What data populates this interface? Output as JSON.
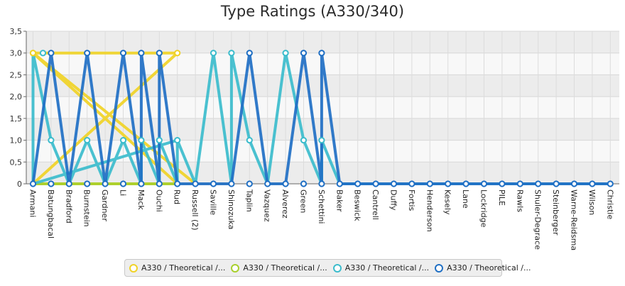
{
  "chart_data": {
    "type": "line",
    "title": "Type Ratings (A330/340)",
    "xlabel": "",
    "ylabel": "",
    "ylim": [
      0,
      3.5
    ],
    "yticks": [
      "0",
      "0,5",
      "1,0",
      "1,5",
      "2,0",
      "2,5",
      "3,0",
      "3,5"
    ],
    "grid": true,
    "legend_position": "bottom",
    "categories": [
      "Armani",
      "Batungbacal",
      "Bradford",
      "Burnstein",
      "Gardner",
      "Li",
      "Mack",
      "Ouchi",
      "Rud",
      "Russell (2)",
      "Saville",
      "Shinozuka",
      "Taplin",
      "Vazquez",
      "Alverez",
      "Green",
      "Schettini",
      "Baker",
      "Beswick",
      "Cantrell",
      "Duffy",
      "Fortis",
      "Henderson",
      "Kesely",
      "Lane",
      "Lockridge",
      "PILE",
      "Rawls",
      "Shuler-Degrace",
      "Steinberger",
      "Warne-Reidsma",
      "Wilson",
      "Christie"
    ],
    "series": [
      {
        "name": "A330 / Theoretical /...",
        "color": "#f0d226",
        "points": [
          [
            "Armani",
            3
          ],
          [
            "Rud",
            0
          ],
          [
            "Armani",
            0
          ],
          [
            "Rud",
            3
          ],
          [
            "Armani",
            3
          ],
          [
            "Russell (2)",
            0
          ]
        ]
      },
      {
        "name": "A330 / Theoretical /...",
        "color": "#a8d02c",
        "points": [
          [
            "Armani",
            0
          ],
          [
            "Rud",
            0
          ]
        ]
      },
      {
        "name": "A330 / Theoretical /...",
        "color": "#3bbccc",
        "points": [
          [
            "Armani",
            3
          ],
          [
            "Armani",
            0
          ],
          [
            "Rud",
            1
          ],
          [
            "Armani",
            0
          ],
          [
            "Armani",
            3
          ],
          [
            "Armani",
            3
          ],
          [
            "Batungbacal",
            1
          ],
          [
            "Bradford",
            0
          ],
          [
            "Burnstein",
            1
          ],
          [
            "Gardner",
            0
          ],
          [
            "Li",
            1
          ],
          [
            "Mack",
            0
          ],
          [
            "Mack",
            1
          ],
          [
            "Ouchi",
            0
          ],
          [
            "Ouchi",
            1
          ],
          [
            "Rud",
            0
          ],
          [
            "Rud",
            1
          ],
          [
            "Russell (2)",
            0
          ],
          [
            "Saville",
            3
          ],
          [
            "Shinozuka",
            0
          ],
          [
            "Shinozuka",
            3
          ],
          [
            "Taplin",
            1
          ],
          [
            "Vazquez",
            0
          ],
          [
            "Alverez",
            3
          ],
          [
            "Green",
            1
          ],
          [
            "Green",
            1
          ],
          [
            "Schettini",
            0
          ],
          [
            "Schettini",
            1
          ],
          [
            "Baker",
            0
          ],
          [
            "Christie",
            0
          ]
        ]
      },
      {
        "name": "A330 / Theoretical /...",
        "color": "#1f6fc4",
        "points": [
          [
            "Armani",
            0
          ],
          [
            "Batungbacal",
            3
          ],
          [
            "Bradford",
            0
          ],
          [
            "Burnstein",
            3
          ],
          [
            "Gardner",
            0
          ],
          [
            "Li",
            3
          ],
          [
            "Mack",
            0
          ],
          [
            "Mack",
            3
          ],
          [
            "Ouchi",
            0
          ],
          [
            "Ouchi",
            3
          ],
          [
            "Rud",
            0
          ],
          [
            "Russell (2)",
            0
          ],
          [
            "Saville",
            0
          ],
          [
            "Shinozuka",
            0
          ],
          [
            "Taplin",
            3
          ],
          [
            "Vazquez",
            0
          ],
          [
            "Alverez",
            0
          ],
          [
            "Green",
            3
          ],
          [
            "Green",
            3
          ],
          [
            "Schettini",
            0
          ],
          [
            "Schettini",
            3
          ],
          [
            "Baker",
            0
          ],
          [
            "Christie",
            0
          ]
        ]
      }
    ],
    "marker_values": {
      "Armani": [
        3,
        3,
        0
      ],
      "Batungbacal": [
        3,
        1,
        0
      ],
      "Bradford": [
        0
      ],
      "Burnstein": [
        3,
        1,
        0
      ],
      "Gardner": [
        0
      ],
      "Li": [
        3,
        1,
        0
      ],
      "Mack": [
        3,
        1,
        0
      ],
      "Ouchi": [
        3,
        1,
        0
      ],
      "Rud": [
        3,
        1,
        0
      ],
      "Russell (2)": [
        0
      ],
      "Saville": [
        3,
        0
      ],
      "Shinozuka": [
        3,
        0
      ],
      "Taplin": [
        3,
        1,
        0
      ],
      "Vazquez": [
        0
      ],
      "Alverez": [
        3,
        0
      ],
      "Green": [
        3,
        1,
        0
      ],
      "Schettini": [
        3,
        1,
        0
      ],
      "Baker": [
        0
      ]
    }
  }
}
